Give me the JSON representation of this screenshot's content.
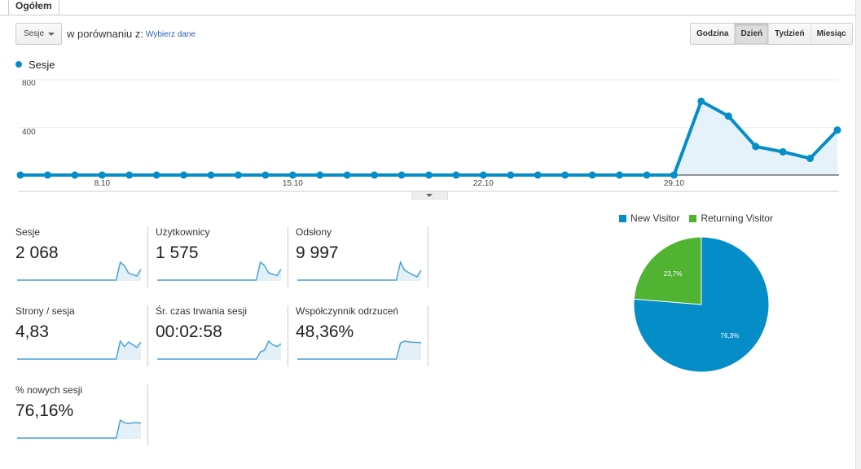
{
  "tab": "Ogółem",
  "metric_select": "Sesje",
  "compare_label": "w porównaniu z:",
  "compare_link": "Wybierz dane",
  "granularity": [
    {
      "label": "Godzina",
      "active": false
    },
    {
      "label": "Dzień",
      "active": true
    },
    {
      "label": "Tydzień",
      "active": false
    },
    {
      "label": "Miesiąc",
      "active": false
    }
  ],
  "chart_data": {
    "type": "line",
    "legend": "Sesje",
    "color": "#058dc7",
    "y_ticks": [
      "800",
      "400"
    ],
    "ylim": [
      0,
      800
    ],
    "x_ticks": [
      {
        "label": "8.10",
        "index": 3
      },
      {
        "label": "15.10",
        "index": 10
      },
      {
        "label": "22.10",
        "index": 17
      },
      {
        "label": "29.10",
        "index": 24
      }
    ],
    "values": [
      0,
      0,
      0,
      0,
      0,
      0,
      0,
      0,
      0,
      0,
      0,
      0,
      0,
      0,
      0,
      0,
      0,
      0,
      0,
      0,
      0,
      0,
      0,
      0,
      0,
      620,
      495,
      240,
      195,
      140,
      378
    ]
  },
  "metrics": [
    {
      "label": "Sesje",
      "value": "2 068",
      "spark": [
        0,
        1,
        0.8,
        0.39,
        0.31,
        0.23,
        0.6
      ]
    },
    {
      "label": "Użytkownicy",
      "value": "1 575",
      "spark": [
        0,
        1,
        0.82,
        0.4,
        0.33,
        0.25,
        0.6
      ]
    },
    {
      "label": "Odsłony",
      "value": "9 997",
      "spark": [
        0,
        1,
        0.55,
        0.42,
        0.3,
        0.18,
        0.55
      ]
    },
    {
      "label": "Strony / sesja",
      "value": "4,83",
      "spark": [
        0,
        1,
        0.7,
        0.95,
        0.8,
        0.65,
        0.95
      ]
    },
    {
      "label": "Śr. czas trwania sesji",
      "value": "00:02:58",
      "spark": [
        0,
        0.4,
        0.5,
        1,
        0.8,
        0.7,
        0.85
      ]
    },
    {
      "label": "Współczynnik odrzuceń",
      "value": "48,36%",
      "spark": [
        0,
        0.9,
        1,
        0.96,
        0.94,
        0.93,
        0.92
      ]
    },
    {
      "label": "% nowych sesji",
      "value": "76,16%",
      "spark": [
        0,
        1,
        0.86,
        0.82,
        0.85,
        0.85,
        0.84
      ]
    }
  ],
  "pie": {
    "legend": [
      {
        "label": "New Visitor",
        "color": "#058dc7"
      },
      {
        "label": "Returning Visitor",
        "color": "#50b432"
      }
    ],
    "slices": [
      {
        "label": "76,3%",
        "value": 76.3,
        "color": "#058dc7"
      },
      {
        "label": "23,7%",
        "value": 23.7,
        "color": "#50b432"
      }
    ]
  }
}
